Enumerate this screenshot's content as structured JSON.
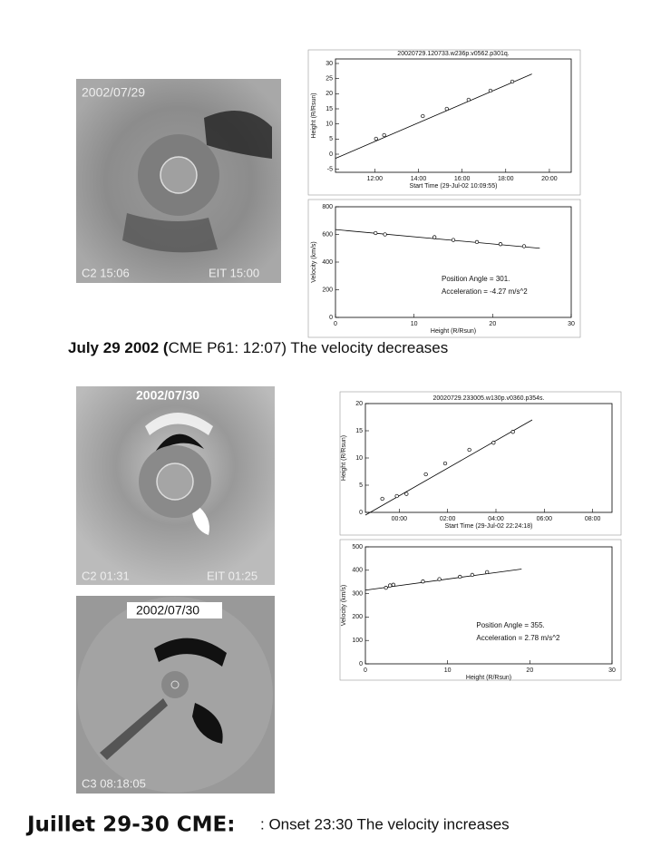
{
  "images": [
    {
      "date": "2002/07/29",
      "left_label": "C2 15:06",
      "right_label": "EIT 15:00"
    },
    {
      "date": "2002/07/30",
      "left_label": "C2 01:31",
      "right_label": "EIT 01:25"
    },
    {
      "date": "2002/07/30",
      "left_label": "C3 08:18:05"
    }
  ],
  "captions": {
    "first": {
      "bold": "July 29 2002 (",
      "normal": "CME P61: 12:07)  The velocity decreases"
    },
    "second": {
      "bold": "Juillet 29-30 CME:",
      "normal": ": Onset 23:30 The velocity increases"
    }
  },
  "chart_data": [
    {
      "type": "scatter",
      "title": "20020729.120733.w236p.v0562.p301q.",
      "x_label": "Start Time (29-Jul-02 10:09:55)",
      "y_label": "Height (R/Rsun)",
      "xlim": [
        10.2,
        21
      ],
      "xticks": [
        {
          "value": 12,
          "label": "12:00"
        },
        {
          "value": 14,
          "label": "14:00"
        },
        {
          "value": 16,
          "label": "16:00"
        },
        {
          "value": 18,
          "label": "18:00"
        },
        {
          "value": 20,
          "label": "20:00"
        }
      ],
      "ylim": [
        -6,
        31.5
      ],
      "yticks": [
        -5,
        0,
        5,
        10,
        15,
        20,
        25,
        30
      ],
      "points": {
        "x": [
          12.06,
          12.43,
          14.2,
          15.3,
          16.3,
          17.3,
          18.3
        ],
        "y": [
          5.1,
          6.3,
          12.6,
          15,
          18,
          21,
          24
        ]
      },
      "fit": {
        "x": [
          10.2,
          19.2
        ],
        "y": [
          -1.4,
          26.5
        ]
      }
    },
    {
      "type": "scatter",
      "x_label": "Height (R/Rsun)",
      "y_label": "Velocity (km/s)",
      "xlim": [
        0,
        30
      ],
      "xticks": [
        0,
        10,
        20,
        30
      ],
      "ylim": [
        0,
        800
      ],
      "yticks": [
        0,
        200,
        400,
        600,
        800
      ],
      "points": {
        "x": [
          5.1,
          6.3,
          12.6,
          15,
          18,
          21,
          24
        ],
        "y": [
          610,
          600,
          580,
          560,
          545,
          530,
          515
        ]
      },
      "fit": {
        "x": [
          0,
          26
        ],
        "y": [
          635,
          500
        ]
      },
      "annotations": [
        "Position Angle =  301.",
        "Acceleration =  -4.27 m/s^2"
      ]
    },
    {
      "type": "scatter",
      "title": "20020729.233005.w130p.v0360.p354s.",
      "x_label": "Start Time (29-Jul-02 22:24:18)",
      "y_label": "Height (R/Rsun)",
      "xlim": [
        22.6,
        32.8
      ],
      "xticks": [
        {
          "value": 24,
          "label": "00:00"
        },
        {
          "value": 26,
          "label": "02:00"
        },
        {
          "value": 28,
          "label": "04:00"
        },
        {
          "value": 30,
          "label": "06:00"
        },
        {
          "value": 32,
          "label": "08:00"
        }
      ],
      "ylim": [
        0,
        20
      ],
      "yticks": [
        0,
        5,
        10,
        15,
        20
      ],
      "points": {
        "x": [
          23.3,
          23.9,
          24.3,
          25.1,
          25.9,
          26.9,
          27.9,
          28.7
        ],
        "y": [
          2.5,
          3,
          3.4,
          7,
          9,
          11.5,
          12.8,
          14.8
        ]
      },
      "fit": {
        "x": [
          22.6,
          29.5
        ],
        "y": [
          -0.5,
          17
        ]
      }
    },
    {
      "type": "scatter",
      "x_label": "Height (R/Rsun)",
      "y_label": "Velocity (km/s)",
      "xlim": [
        0,
        30
      ],
      "xticks": [
        0,
        10,
        20,
        30
      ],
      "ylim": [
        0,
        500
      ],
      "yticks": [
        0,
        100,
        200,
        300,
        400,
        500
      ],
      "points": {
        "x": [
          2.5,
          3,
          3.4,
          7,
          9,
          11.5,
          13,
          14.8
        ],
        "y": [
          325,
          335,
          338,
          352,
          362,
          372,
          380,
          392
        ]
      },
      "fit": {
        "x": [
          0,
          19
        ],
        "y": [
          315,
          405
        ]
      },
      "annotations": [
        "Position Angle =  355.",
        "Acceleration =   2.78 m/s^2"
      ]
    }
  ]
}
